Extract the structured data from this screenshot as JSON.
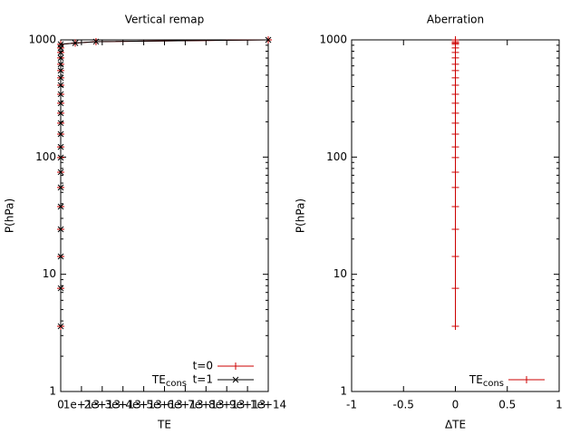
{
  "chart_data": [
    {
      "type": "line",
      "title": "Vertical remap",
      "xlabel": "TE",
      "ylabel": "P(hPa)",
      "xlim": [
        0,
        100000000000000
      ],
      "xticks": [
        0,
        {
          "value": 10000000000000,
          "label": "1e+13"
        },
        {
          "value": 20000000000000,
          "label": "2e+13"
        },
        {
          "value": 30000000000000,
          "label": "3e+13"
        },
        {
          "value": 40000000000000,
          "label": "4e+13"
        },
        {
          "value": 50000000000000,
          "label": "5e+13"
        },
        {
          "value": 60000000000000,
          "label": "6e+13"
        },
        {
          "value": 70000000000000,
          "label": "7e+13"
        },
        {
          "value": 80000000000000,
          "label": "8e+13"
        },
        {
          "value": 90000000000000,
          "label": "9e+13"
        },
        {
          "value": 100000000000000,
          "label": "1e+14"
        }
      ],
      "ylim": [
        1,
        1000
      ],
      "yticks": [
        1,
        10,
        100,
        1000
      ],
      "ylog": true,
      "legend_position": "bottom right",
      "legend_title": {
        "text": "TE",
        "sub": "cons"
      },
      "series": [
        {
          "name": "t=0",
          "color": "#cc0000",
          "marker": "plus",
          "x": [
            0,
            0,
            0,
            0,
            0,
            0,
            0,
            0,
            0,
            0,
            0,
            0,
            0,
            0,
            0,
            0,
            0,
            0,
            0,
            0,
            0,
            0,
            7000000000000,
            17000000000000,
            100000000000000
          ],
          "values": [
            3.6,
            7.6,
            14.2,
            24.2,
            37.8,
            55,
            74.4,
            99,
            122,
            157,
            195,
            237,
            288,
            344,
            411,
            474,
            547,
            620,
            702,
            781,
            854,
            917,
            940,
            966,
            1000
          ]
        },
        {
          "name": "t=1",
          "color": "#000000",
          "marker": "cross",
          "x": [
            0,
            0,
            0,
            0,
            0,
            0,
            0,
            0,
            0,
            0,
            0,
            0,
            0,
            0,
            0,
            0,
            0,
            0,
            0,
            0,
            0,
            0,
            7000000000000,
            17000000000000,
            100000000000000
          ],
          "values": [
            3.6,
            7.6,
            14.2,
            24.2,
            37.8,
            55,
            74.4,
            99,
            122,
            157,
            195,
            237,
            288,
            344,
            411,
            474,
            547,
            620,
            702,
            781,
            854,
            917,
            940,
            966,
            1000
          ]
        }
      ]
    },
    {
      "type": "line",
      "title": "Aberration",
      "xlabel": "ΔTE",
      "ylabel": "P(hPa)",
      "xlim": [
        -1,
        1
      ],
      "xticks": [
        -1,
        -0.5,
        0,
        0.5,
        1
      ],
      "ylim": [
        1,
        1000
      ],
      "yticks": [
        1,
        10,
        100,
        1000
      ],
      "ylog": true,
      "legend_position": "bottom right",
      "series": [
        {
          "name": {
            "text": "TE",
            "sub": "cons"
          },
          "color": "#cc0000",
          "marker": "plus",
          "x": [
            0,
            0,
            0,
            0,
            0,
            0,
            0,
            0,
            0,
            0,
            0,
            0,
            0,
            0,
            0,
            0,
            0,
            0,
            0,
            0,
            0,
            0,
            0,
            0,
            0
          ],
          "values": [
            3.6,
            7.6,
            14.2,
            24.2,
            37.8,
            55,
            74.4,
            99,
            122,
            157,
            195,
            237,
            288,
            344,
            411,
            474,
            547,
            620,
            702,
            781,
            854,
            917,
            940,
            966,
            1000
          ]
        }
      ]
    }
  ]
}
